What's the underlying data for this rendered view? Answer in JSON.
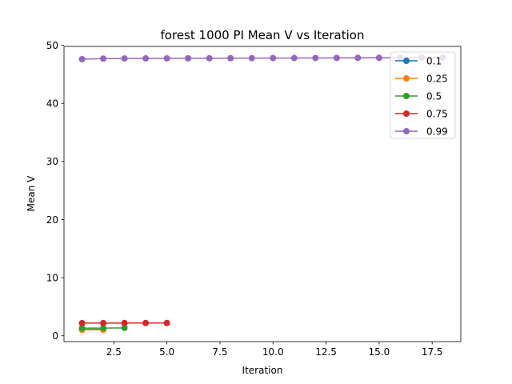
{
  "chart_data": {
    "type": "line",
    "title": "forest 1000 PI Mean V vs Iteration",
    "xlabel": "Iteration",
    "ylabel": "Mean V",
    "xlim": [
      0.15,
      18.85
    ],
    "ylim": [
      -1.0,
      49.8
    ],
    "xticks": [
      2.5,
      5.0,
      7.5,
      10.0,
      12.5,
      15.0,
      17.5
    ],
    "xtick_labels": [
      "2.5",
      "5.0",
      "7.5",
      "10.0",
      "12.5",
      "15.0",
      "17.5"
    ],
    "yticks": [
      0,
      10,
      20,
      30,
      40,
      50
    ],
    "ytick_labels": [
      "0",
      "10",
      "20",
      "30",
      "40",
      "50"
    ],
    "grid": false,
    "legend_position": "top-right",
    "series": [
      {
        "name": "0.1",
        "color": "#1f77b4",
        "x": [
          1,
          2
        ],
        "y": [
          1.11,
          1.11
        ]
      },
      {
        "name": "0.25",
        "color": "#ff7f0e",
        "x": [
          1,
          2
        ],
        "y": [
          1.03,
          1.03
        ]
      },
      {
        "name": "0.5",
        "color": "#2ca02c",
        "x": [
          1,
          2,
          3
        ],
        "y": [
          1.33,
          1.33,
          1.35
        ]
      },
      {
        "name": "0.75",
        "color": "#d62728",
        "x": [
          1,
          2,
          3,
          4,
          5
        ],
        "y": [
          2.18,
          2.18,
          2.2,
          2.2,
          2.2
        ]
      },
      {
        "name": "0.99",
        "color": "#9467bd",
        "x": [
          1,
          2,
          3,
          4,
          5,
          6,
          7,
          8,
          9,
          10,
          11,
          12,
          13,
          14,
          15,
          16,
          17,
          18
        ],
        "y": [
          47.6,
          47.7,
          47.72,
          47.73,
          47.74,
          47.75,
          47.76,
          47.77,
          47.78,
          47.79,
          47.8,
          47.81,
          47.82,
          47.83,
          47.84,
          47.85,
          47.86,
          47.86
        ]
      }
    ]
  }
}
